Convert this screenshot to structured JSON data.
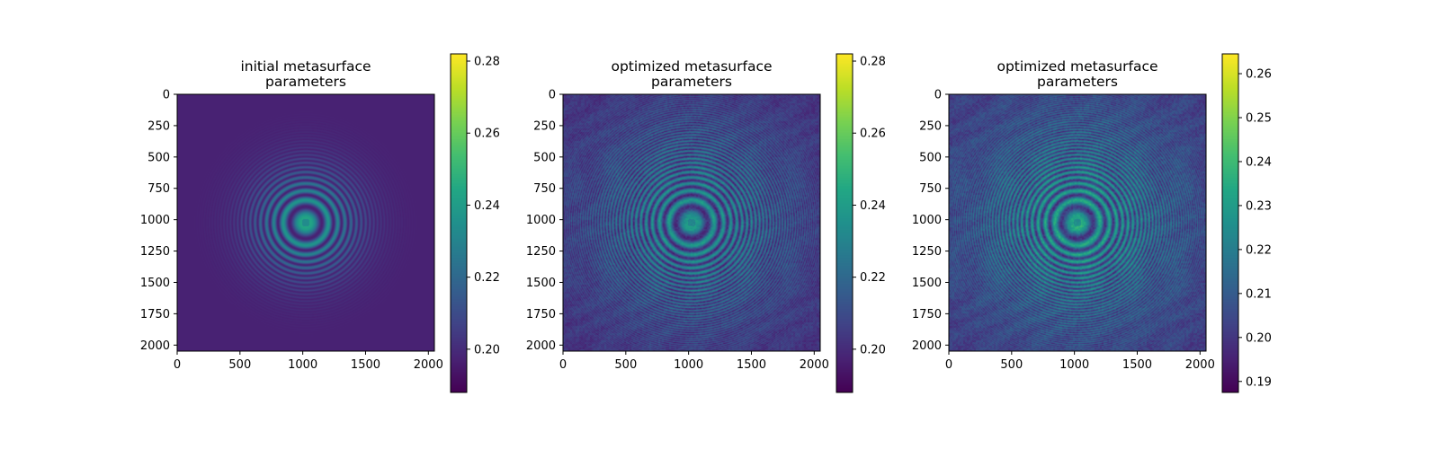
{
  "chart_data": [
    {
      "type": "heatmap",
      "title_lines": [
        "initial metasurface",
        "parameters"
      ],
      "x_ticks": [
        0,
        500,
        1000,
        1500,
        2000
      ],
      "y_ticks": [
        0,
        250,
        500,
        750,
        1000,
        1250,
        1500,
        1750,
        2000
      ],
      "extent": [
        0,
        2048
      ],
      "colormap": "viridis",
      "colorbar": {
        "min": 0.188,
        "max": 0.282,
        "ticks": [
          0.2,
          0.22,
          0.24,
          0.26,
          0.28
        ],
        "tick_labels": [
          "0.20",
          "0.22",
          "0.24",
          "0.26",
          "0.28"
        ]
      },
      "pattern": {
        "base_value": 0.197,
        "ring_peak_value": 0.245,
        "ring_extent": 420,
        "noise": 0.0
      }
    },
    {
      "type": "heatmap",
      "title_lines": [
        "optimized metasurface",
        "parameters"
      ],
      "x_ticks": [
        0,
        500,
        1000,
        1500,
        2000
      ],
      "y_ticks": [
        0,
        250,
        500,
        750,
        1000,
        1250,
        1500,
        1750,
        2000
      ],
      "extent": [
        0,
        2048
      ],
      "colormap": "viridis",
      "colorbar": {
        "min": 0.188,
        "max": 0.282,
        "ticks": [
          0.2,
          0.22,
          0.24,
          0.26,
          0.28
        ],
        "tick_labels": [
          "0.20",
          "0.22",
          "0.24",
          "0.26",
          "0.28"
        ]
      },
      "pattern": {
        "base_value": 0.2,
        "ring_peak_value": 0.24,
        "ring_extent": 950,
        "noise": 0.006
      }
    },
    {
      "type": "heatmap",
      "title_lines": [
        "optimized metasurface",
        "parameters"
      ],
      "x_ticks": [
        0,
        500,
        1000,
        1500,
        2000
      ],
      "y_ticks": [
        0,
        250,
        500,
        750,
        1000,
        1250,
        1500,
        1750,
        2000
      ],
      "extent": [
        0,
        2048
      ],
      "colormap": "viridis",
      "colorbar": {
        "min": 0.1875,
        "max": 0.2645,
        "ticks": [
          0.19,
          0.2,
          0.21,
          0.22,
          0.23,
          0.24,
          0.25,
          0.26
        ],
        "tick_labels": [
          "0.19",
          "0.20",
          "0.21",
          "0.22",
          "0.23",
          "0.24",
          "0.25",
          "0.26"
        ]
      },
      "pattern": {
        "base_value": 0.2,
        "ring_peak_value": 0.235,
        "ring_extent": 950,
        "noise": 0.006
      }
    }
  ]
}
